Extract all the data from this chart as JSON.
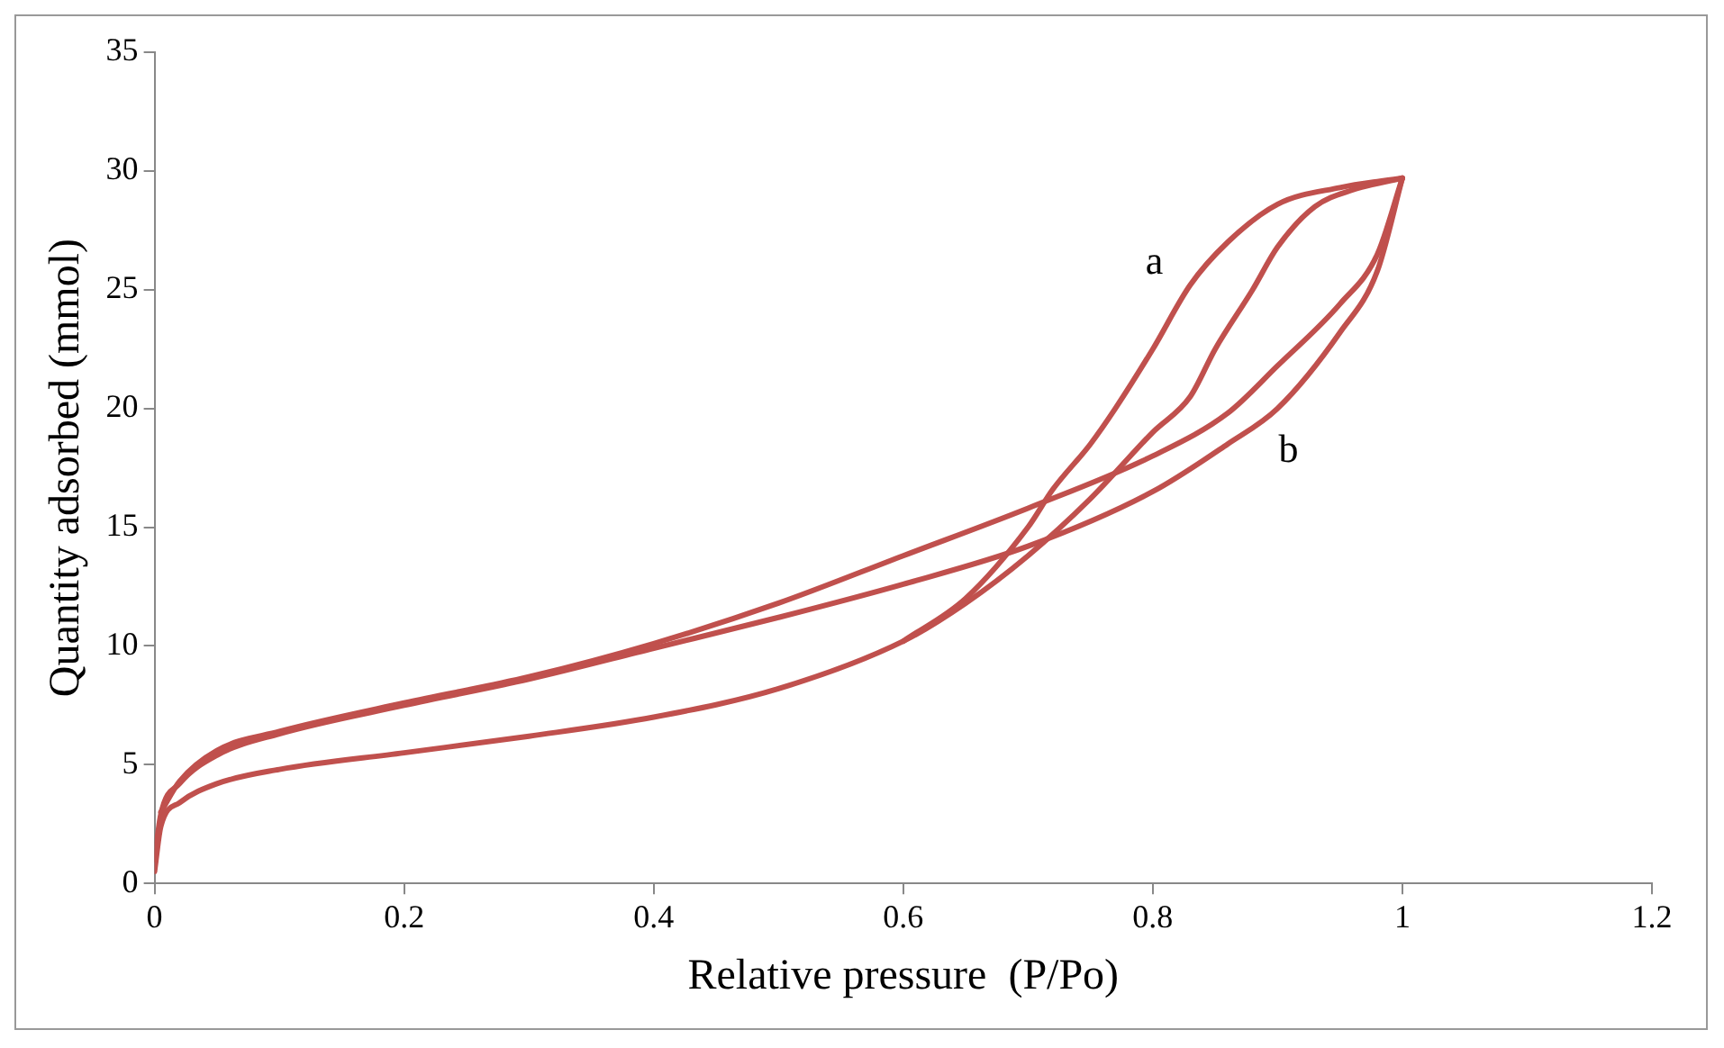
{
  "chart_data": {
    "type": "line",
    "xlabel": "Relative pressure  (P/Po)",
    "ylabel": "Quantity adsorbed (mmol)",
    "xlim": [
      0,
      1.2
    ],
    "xticks": [
      0,
      0.2,
      0.4,
      0.6,
      0.8,
      1,
      1.2
    ],
    "ylim": [
      0,
      35
    ],
    "yticks": [
      0,
      5,
      10,
      15,
      20,
      25,
      30,
      35
    ],
    "grid": false,
    "legend": false,
    "marker": "none",
    "line_style": "solid",
    "series": [
      {
        "color": "#c0504d",
        "x": [
          0,
          0.005,
          0.02,
          0.05,
          0.1,
          0.2,
          0.3,
          0.4,
          0.5,
          0.6,
          0.65,
          0.7,
          0.75,
          0.8,
          0.83,
          0.85,
          0.88,
          0.9,
          0.93,
          0.96,
          1
        ],
        "values": [
          0.5,
          2.4,
          3.4,
          4.2,
          4.8,
          5.5,
          6.2,
          7,
          8.2,
          10.2,
          11.8,
          13.8,
          16.2,
          19,
          20.5,
          22.5,
          25,
          26.8,
          28.5,
          29.2,
          29.7
        ]
      },
      {
        "name": "a",
        "color": "#c0504d",
        "x": [
          0.6,
          0.65,
          0.7,
          0.72,
          0.75,
          0.77,
          0.8,
          0.83,
          0.86,
          0.9,
          0.95,
          1
        ],
        "values": [
          10.2,
          12,
          15,
          16.6,
          18.5,
          20,
          22.5,
          25.2,
          27,
          28.6,
          29.3,
          29.7
        ]
      },
      {
        "color": "#c0504d",
        "x": [
          0.005,
          0.02,
          0.05,
          0.1,
          0.2,
          0.3,
          0.4,
          0.5,
          0.6,
          0.7,
          0.8,
          0.86,
          0.9,
          0.95,
          0.98,
          1
        ],
        "values": [
          3,
          4.3,
          5.6,
          6.4,
          7.6,
          8.7,
          10.1,
          11.8,
          13.8,
          15.8,
          18,
          19.8,
          21.8,
          24.4,
          26.5,
          29.7
        ]
      },
      {
        "name": "b",
        "color": "#c0504d",
        "x": [
          0,
          0.005,
          0.02,
          0.05,
          0.1,
          0.2,
          0.3,
          0.4,
          0.5,
          0.6,
          0.7,
          0.8,
          0.86,
          0.9,
          0.95,
          0.98,
          1
        ],
        "values": [
          1,
          2.9,
          4.2,
          5.4,
          6.3,
          7.5,
          8.6,
          9.9,
          11.2,
          12.6,
          14.2,
          16.5,
          18.5,
          20,
          23.2,
          25.8,
          29.7
        ]
      }
    ]
  }
}
